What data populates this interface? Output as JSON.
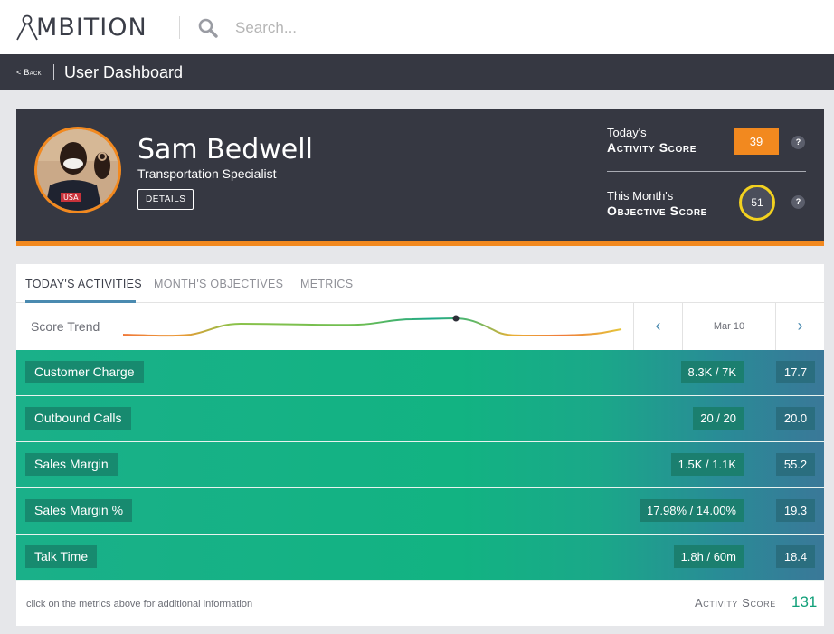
{
  "app": {
    "logo": "MBITION",
    "logo_alt": "AMBITION"
  },
  "search": {
    "placeholder": "Search..."
  },
  "nav": {
    "back_label": "< Back",
    "title": "User Dashboard"
  },
  "profile": {
    "name": "Sam Bedwell",
    "job_title": "Transportation Specialist",
    "details_label": "DETAILS",
    "activity_score": {
      "line1": "Today's",
      "line2": "Activity Score",
      "value": "39"
    },
    "objective_score": {
      "line1": "This Month's",
      "line2": "Objective Score",
      "value": "51"
    },
    "help_label": "?"
  },
  "tabs": [
    {
      "label": "TODAY'S ACTIVITIES",
      "active": true
    },
    {
      "label": "MONTH'S OBJECTIVES",
      "active": false
    },
    {
      "label": "METRICS",
      "active": false
    }
  ],
  "trend": {
    "label": "Score Trend",
    "date": "Mar 10",
    "prev_icon": "‹",
    "next_icon": "›"
  },
  "metrics": [
    {
      "name": "Customer Charge",
      "value": "8.3K / 7K",
      "score": "17.7"
    },
    {
      "name": "Outbound Calls",
      "value": "20 / 20",
      "score": "20.0"
    },
    {
      "name": "Sales Margin",
      "value": "1.5K / 1.1K",
      "score": "55.2"
    },
    {
      "name": "Sales Margin %",
      "value": "17.98% / 14.00%",
      "score": "19.3"
    },
    {
      "name": "Talk Time",
      "value": "1.8h / 60m",
      "score": "18.4"
    }
  ],
  "footer": {
    "hint": "click on the metrics above for additional information",
    "score_label": "Activity Score",
    "score_value": "131"
  },
  "colors": {
    "accent_orange": "#f2891f",
    "accent_green": "#12b382",
    "dark_header": "#363842",
    "link_blue": "#4a8ab0"
  }
}
